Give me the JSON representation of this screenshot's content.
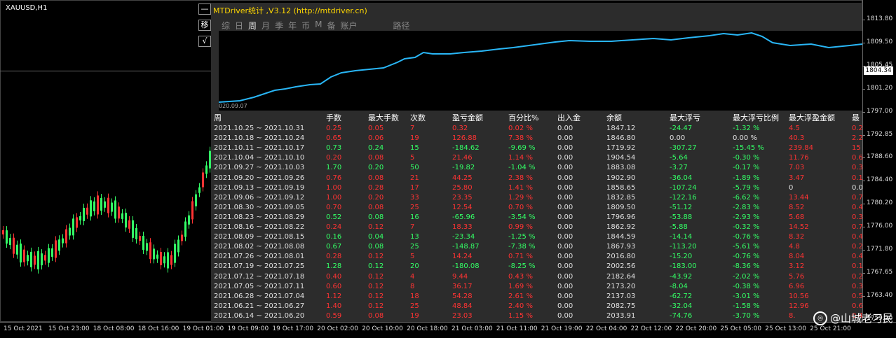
{
  "chart": {
    "symbol": "XAUUSD,H1",
    "price_tag": "1804.34"
  },
  "panel": {
    "title": "MTDriver统计 ,V3.12 (http://mtdriver.cn)",
    "buttons": [
      "—",
      "移",
      "√"
    ],
    "tabs": [
      "综",
      "日",
      "周",
      "月",
      "季",
      "年",
      "币",
      "M",
      "备",
      "账户",
      "路径"
    ],
    "active_tab": 2,
    "equity_start_label": "020.09.07"
  },
  "colors": {
    "up": "#33ff66",
    "down": "#ff3333",
    "equity_line": "#29b6f6",
    "panel_bg": "#2c2c2c"
  },
  "table": {
    "headers": [
      "周",
      "手数",
      "最大手数",
      "次数",
      "盈亏金额",
      "百分比%",
      "出入金",
      "余额",
      "最大浮亏",
      "最大浮亏比例",
      "最大浮盈金额",
      "最"
    ],
    "rows": [
      {
        "week": "2021.10.25 ~ 2021.10.31",
        "lots": "0.25",
        "maxlots": "0.05",
        "count": "7",
        "pl": "0.32",
        "pct": "0.02 %",
        "io": "0.00",
        "bal": "1847.12",
        "mdd": "-24.47",
        "mddp": "-1.32 %",
        "mfe": "4.5",
        "extra": "0.2",
        "c": "r"
      },
      {
        "week": "2021.10.18 ~ 2021.10.24",
        "lots": "0.65",
        "maxlots": "0.06",
        "count": "19",
        "pl": "126.88",
        "pct": "7.38 %",
        "io": "0.00",
        "bal": "1846.80",
        "mdd": "0.00",
        "mddp": "0.00 %",
        "mfe": "40.3",
        "extra": "2.2",
        "c": "r",
        "z": true
      },
      {
        "week": "2021.10.11 ~ 2021.10.17",
        "lots": "0.73",
        "maxlots": "0.24",
        "count": "15",
        "pl": "-184.62",
        "pct": "-9.69 %",
        "io": "0.00",
        "bal": "1719.92",
        "mdd": "-307.27",
        "mddp": "-15.45 %",
        "mfe": "239.84",
        "extra": "15",
        "c": "g"
      },
      {
        "week": "2021.10.04 ~ 2021.10.10",
        "lots": "0.20",
        "maxlots": "0.08",
        "count": "5",
        "pl": "21.46",
        "pct": "1.14 %",
        "io": "0.00",
        "bal": "1904.54",
        "mdd": "-5.64",
        "mddp": "-0.30 %",
        "mfe": "11.76",
        "extra": "0.6",
        "c": "r"
      },
      {
        "week": "2021.09.27 ~ 2021.10.03",
        "lots": "1.70",
        "maxlots": "0.20",
        "count": "50",
        "pl": "-19.82",
        "pct": "-1.04 %",
        "io": "0.00",
        "bal": "1883.08",
        "mdd": "-3.27",
        "mddp": "-0.17 %",
        "mfe": "7.03",
        "extra": "0.3",
        "c": "g"
      },
      {
        "week": "2021.09.20 ~ 2021.09.26",
        "lots": "0.76",
        "maxlots": "0.08",
        "count": "21",
        "pl": "44.25",
        "pct": "2.38 %",
        "io": "0.00",
        "bal": "1902.90",
        "mdd": "-36.04",
        "mddp": "-1.89 %",
        "mfe": "3.47",
        "extra": "0.1",
        "c": "r"
      },
      {
        "week": "2021.09.13 ~ 2021.09.19",
        "lots": "1.00",
        "maxlots": "0.28",
        "count": "17",
        "pl": "25.80",
        "pct": "1.41 %",
        "io": "0.00",
        "bal": "1858.65",
        "mdd": "-107.24",
        "mddp": "-5.79 %",
        "mfe": "0",
        "extra": "0.0",
        "c": "r",
        "zmfe": true
      },
      {
        "week": "2021.09.06 ~ 2021.09.12",
        "lots": "1.00",
        "maxlots": "0.20",
        "count": "33",
        "pl": "23.35",
        "pct": "1.29 %",
        "io": "0.00",
        "bal": "1832.85",
        "mdd": "-122.16",
        "mddp": "-6.62 %",
        "mfe": "13.44",
        "extra": "0.7",
        "c": "r"
      },
      {
        "week": "2021.08.30 ~ 2021.09.05",
        "lots": "0.70",
        "maxlots": "0.08",
        "count": "25",
        "pl": "12.54",
        "pct": "0.70 %",
        "io": "0.00",
        "bal": "1809.50",
        "mdd": "-51.12",
        "mddp": "-2.83 %",
        "mfe": "8.52",
        "extra": "0.4",
        "c": "r"
      },
      {
        "week": "2021.08.23 ~ 2021.08.29",
        "lots": "0.52",
        "maxlots": "0.08",
        "count": "16",
        "pl": "-65.96",
        "pct": "-3.54 %",
        "io": "0.00",
        "bal": "1796.96",
        "mdd": "-53.88",
        "mddp": "-2.93 %",
        "mfe": "5.68",
        "extra": "0.3",
        "c": "g"
      },
      {
        "week": "2021.08.16 ~ 2021.08.22",
        "lots": "0.24",
        "maxlots": "0.12",
        "count": "7",
        "pl": "18.33",
        "pct": "0.99 %",
        "io": "0.00",
        "bal": "1862.92",
        "mdd": "-5.88",
        "mddp": "-0.32 %",
        "mfe": "14.52",
        "extra": "0.7",
        "c": "r"
      },
      {
        "week": "2021.08.09 ~ 2021.08.15",
        "lots": "0.16",
        "maxlots": "0.04",
        "count": "13",
        "pl": "-23.34",
        "pct": "-1.25 %",
        "io": "0.00",
        "bal": "1844.59",
        "mdd": "-14.14",
        "mddp": "-0.76 %",
        "mfe": "8.32",
        "extra": "0.4",
        "c": "g"
      },
      {
        "week": "2021.08.02 ~ 2021.08.08",
        "lots": "0.67",
        "maxlots": "0.08",
        "count": "25",
        "pl": "-148.87",
        "pct": "-7.38 %",
        "io": "0.00",
        "bal": "1867.93",
        "mdd": "-113.20",
        "mddp": "-5.61 %",
        "mfe": "4.8",
        "extra": "0.2",
        "c": "g"
      },
      {
        "week": "2021.07.26 ~ 2021.08.01",
        "lots": "0.28",
        "maxlots": "0.12",
        "count": "5",
        "pl": "14.24",
        "pct": "0.71 %",
        "io": "0.00",
        "bal": "2016.80",
        "mdd": "-15.20",
        "mddp": "-0.76 %",
        "mfe": "8.04",
        "extra": "0.4",
        "c": "r"
      },
      {
        "week": "2021.07.19 ~ 2021.07.25",
        "lots": "1.28",
        "maxlots": "0.12",
        "count": "20",
        "pl": "-180.08",
        "pct": "-8.25 %",
        "io": "0.00",
        "bal": "2002.56",
        "mdd": "-183.00",
        "mddp": "-8.36 %",
        "mfe": "3.12",
        "extra": "0.1",
        "c": "g"
      },
      {
        "week": "2021.07.12 ~ 2021.07.18",
        "lots": "0.40",
        "maxlots": "0.12",
        "count": "4",
        "pl": "9.44",
        "pct": "0.43 %",
        "io": "0.00",
        "bal": "2182.64",
        "mdd": "-43.92",
        "mddp": "-2.02 %",
        "mfe": "5.76",
        "extra": "0.2",
        "c": "r"
      },
      {
        "week": "2021.07.05 ~ 2021.07.11",
        "lots": "0.60",
        "maxlots": "0.12",
        "count": "8",
        "pl": "36.17",
        "pct": "1.69 %",
        "io": "0.00",
        "bal": "2173.20",
        "mdd": "-8.04",
        "mddp": "-0.38 %",
        "mfe": "6.96",
        "extra": "0.3",
        "c": "r"
      },
      {
        "week": "2021.06.28 ~ 2021.07.04",
        "lots": "1.12",
        "maxlots": "0.12",
        "count": "18",
        "pl": "54.28",
        "pct": "2.61 %",
        "io": "0.00",
        "bal": "2137.03",
        "mdd": "-62.72",
        "mddp": "-3.01 %",
        "mfe": "10.56",
        "extra": "0.5",
        "c": "r"
      },
      {
        "week": "2021.06.21 ~ 2021.06.27",
        "lots": "1.40",
        "maxlots": "0.12",
        "count": "25",
        "pl": "48.84",
        "pct": "2.40 %",
        "io": "0.00",
        "bal": "2082.75",
        "mdd": "-32.04",
        "mddp": "-1.58 %",
        "mfe": "12.96",
        "extra": "0.6",
        "c": "r"
      },
      {
        "week": "2021.06.14 ~ 2021.06.20",
        "lots": "0.59",
        "maxlots": "0.08",
        "count": "19",
        "pl": "23.03",
        "pct": "1.15 %",
        "io": "0.00",
        "bal": "2033.91",
        "mdd": "-74.76",
        "mddp": "-3.70 %",
        "mfe": "8.",
        "extra": "0.4",
        "c": "r"
      }
    ]
  },
  "yaxis": [
    "1813.80",
    "1809.50",
    "1805.45",
    "1801.20",
    "1797.00",
    "1792.85",
    "1788.60",
    "1784.40",
    "1780.20",
    "1776.00",
    "1771.80",
    "1767.65",
    "1763.40",
    "1759.20"
  ],
  "xaxis": [
    "15 Oct 2021",
    "15 Oct 23:00",
    "18 Oct 08:00",
    "18 Oct 16:00",
    "19 Oct 01:00",
    "19 Oct 09:00",
    "19 Oct 17:00",
    "20 Oct 02:00",
    "20 Oct 10:00",
    "20 Oct 18:00",
    "21 Oct 03:00",
    "21 Oct 11:00",
    "21 Oct 19:00",
    "22 Oct 04:00",
    "22 Oct 12:00",
    "22 Oct 20:00",
    "25 Oct 05:00",
    "25 Oct 13:00",
    "25 Oct 21:00"
  ],
  "watermark": {
    "icon": "weibo-icon",
    "text": "@山城老刁民"
  }
}
